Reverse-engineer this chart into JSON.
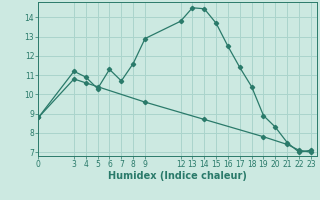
{
  "xlabel": "Humidex (Indice chaleur)",
  "background_color": "#cce9e1",
  "grid_color": "#aad4cc",
  "line_color": "#2a7a6a",
  "curve1_x": [
    0,
    3,
    4,
    5,
    6,
    7,
    8,
    9,
    12,
    13,
    14,
    15,
    16,
    17,
    18,
    19,
    20,
    21,
    22,
    23
  ],
  "curve1_y": [
    8.8,
    11.2,
    10.9,
    10.3,
    11.3,
    10.7,
    11.6,
    12.9,
    13.8,
    14.5,
    14.45,
    13.7,
    12.5,
    11.4,
    10.4,
    8.9,
    8.3,
    7.5,
    7.0,
    7.1
  ],
  "curve2_x": [
    0,
    3,
    4,
    5,
    9,
    14,
    19,
    21,
    22,
    23
  ],
  "curve2_y": [
    8.8,
    10.8,
    10.6,
    10.4,
    9.6,
    8.7,
    7.8,
    7.4,
    7.1,
    7.0
  ],
  "xticks": [
    0,
    3,
    4,
    5,
    6,
    7,
    8,
    9,
    12,
    13,
    14,
    15,
    16,
    17,
    18,
    19,
    20,
    21,
    22,
    23
  ],
  "yticks": [
    7,
    8,
    9,
    10,
    11,
    12,
    13,
    14
  ],
  "xlim": [
    0,
    23.5
  ],
  "ylim": [
    6.8,
    14.8
  ],
  "tick_fontsize": 5.5,
  "label_fontsize": 7.0
}
